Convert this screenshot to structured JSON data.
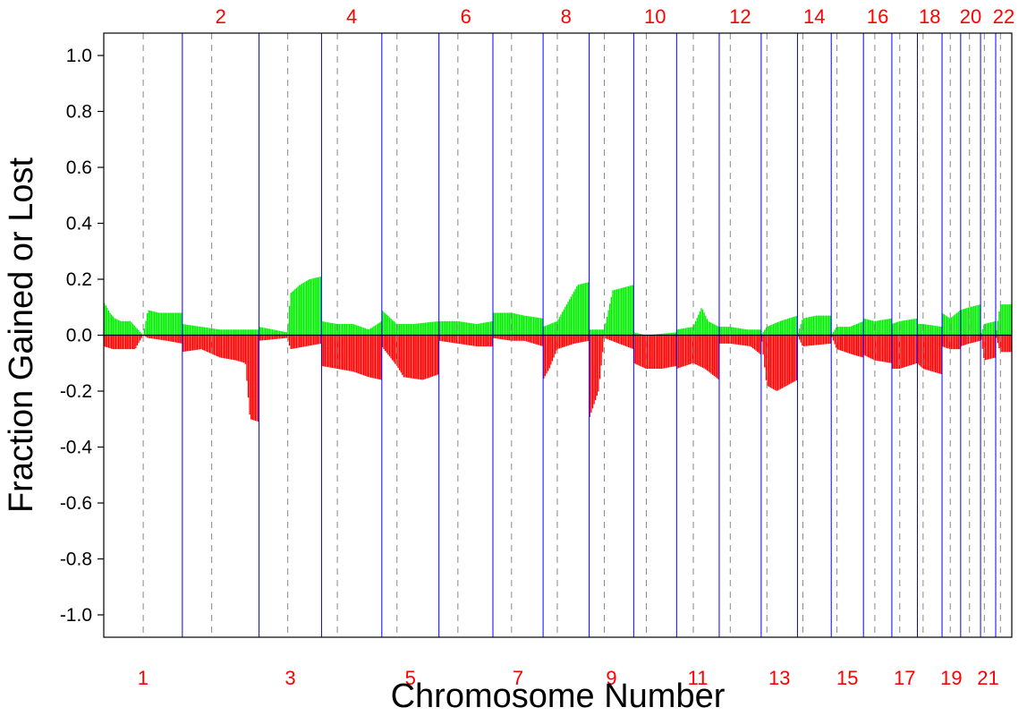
{
  "chart_data": {
    "type": "bar",
    "title": "",
    "xlabel": "Chromosome Number",
    "ylabel": "Fraction Gained or Lost",
    "ylim": [
      -1.08,
      1.08
    ],
    "yticks": [
      "1.0",
      "0.8",
      "0.6",
      "0.4",
      "0.2",
      "0.0",
      "-0.2",
      "-0.4",
      "-0.6",
      "-0.8",
      "-1.0"
    ],
    "ytick_values": [
      1.0,
      0.8,
      0.6,
      0.4,
      0.2,
      0.0,
      -0.2,
      -0.4,
      -0.6,
      -0.8,
      -1.0
    ],
    "grid": false,
    "colors": {
      "gain": "#00ee00",
      "loss": "#ff0000",
      "boundary": "#0000ff",
      "centromere": "#888888",
      "zero": "#000000",
      "chrom_label": "#ff0000"
    },
    "chromosomes": [
      {
        "label": "1",
        "size": 249,
        "cen": 125,
        "gain": [
          [
            0,
            0.12
          ],
          [
            20,
            0.08
          ],
          [
            35,
            0.06
          ],
          [
            55,
            0.05
          ],
          [
            85,
            0.05
          ],
          [
            125,
            0
          ],
          [
            140,
            0.09
          ],
          [
            175,
            0.08
          ],
          [
            249,
            0.08
          ]
        ],
        "loss": [
          [
            0,
            -0.04
          ],
          [
            30,
            -0.05
          ],
          [
            100,
            -0.05
          ],
          [
            125,
            0
          ],
          [
            140,
            -0.01
          ],
          [
            200,
            -0.02
          ],
          [
            249,
            -0.03
          ]
        ]
      },
      {
        "label": "2",
        "size": 243,
        "cen": 93,
        "gain": [
          [
            0,
            0.04
          ],
          [
            60,
            0.03
          ],
          [
            120,
            0.02
          ],
          [
            243,
            0.02
          ]
        ],
        "loss": [
          [
            0,
            -0.06
          ],
          [
            60,
            -0.05
          ],
          [
            120,
            -0.08
          ],
          [
            170,
            -0.09
          ],
          [
            200,
            -0.1
          ],
          [
            215,
            -0.3
          ],
          [
            243,
            -0.31
          ]
        ]
      },
      {
        "label": "3",
        "size": 198,
        "cen": 91,
        "gain": [
          [
            0,
            0.03
          ],
          [
            90,
            0.01
          ],
          [
            100,
            0.15
          ],
          [
            130,
            0.18
          ],
          [
            160,
            0.2
          ],
          [
            198,
            0.21
          ]
        ],
        "loss": [
          [
            0,
            -0.02
          ],
          [
            90,
            -0.01
          ],
          [
            100,
            -0.05
          ],
          [
            198,
            -0.03
          ]
        ]
      },
      {
        "label": "4",
        "size": 191,
        "cen": 50,
        "gain": [
          [
            0,
            0.05
          ],
          [
            50,
            0.04
          ],
          [
            100,
            0.04
          ],
          [
            150,
            0.02
          ],
          [
            191,
            0.05
          ]
        ],
        "loss": [
          [
            0,
            -0.11
          ],
          [
            50,
            -0.12
          ],
          [
            100,
            -0.13
          ],
          [
            150,
            -0.15
          ],
          [
            191,
            -0.16
          ]
        ]
      },
      {
        "label": "5",
        "size": 181,
        "cen": 48,
        "gain": [
          [
            0,
            0.09
          ],
          [
            48,
            0.04
          ],
          [
            100,
            0.04
          ],
          [
            181,
            0.05
          ]
        ],
        "loss": [
          [
            0,
            -0.04
          ],
          [
            48,
            -0.11
          ],
          [
            70,
            -0.15
          ],
          [
            130,
            -0.16
          ],
          [
            181,
            -0.14
          ]
        ]
      },
      {
        "label": "6",
        "size": 171,
        "cen": 60,
        "gain": [
          [
            0,
            0.05
          ],
          [
            60,
            0.05
          ],
          [
            120,
            0.04
          ],
          [
            171,
            0.05
          ]
        ],
        "loss": [
          [
            0,
            -0.02
          ],
          [
            60,
            -0.03
          ],
          [
            120,
            -0.04
          ],
          [
            171,
            -0.04
          ]
        ]
      },
      {
        "label": "7",
        "size": 159,
        "cen": 59,
        "gain": [
          [
            0,
            0.08
          ],
          [
            59,
            0.08
          ],
          [
            100,
            0.07
          ],
          [
            159,
            0.06
          ]
        ],
        "loss": [
          [
            0,
            -0.01
          ],
          [
            59,
            -0.02
          ],
          [
            100,
            -0.02
          ],
          [
            159,
            -0.04
          ]
        ]
      },
      {
        "label": "8",
        "size": 146,
        "cen": 45,
        "gain": [
          [
            0,
            0.03
          ],
          [
            45,
            0.05
          ],
          [
            80,
            0.12
          ],
          [
            110,
            0.18
          ],
          [
            146,
            0.19
          ]
        ],
        "loss": [
          [
            0,
            -0.16
          ],
          [
            20,
            -0.12
          ],
          [
            45,
            -0.05
          ],
          [
            100,
            -0.03
          ],
          [
            146,
            -0.02
          ]
        ]
      },
      {
        "label": "9",
        "size": 141,
        "cen": 48,
        "gain": [
          [
            0,
            0.02
          ],
          [
            48,
            0.02
          ],
          [
            75,
            0.16
          ],
          [
            141,
            0.18
          ]
        ],
        "loss": [
          [
            0,
            -0.3
          ],
          [
            30,
            -0.2
          ],
          [
            48,
            -0.01
          ],
          [
            141,
            -0.05
          ]
        ]
      },
      {
        "label": "10",
        "size": 136,
        "cen": 40,
        "gain": [
          [
            0,
            0.01
          ],
          [
            40,
            0.0
          ],
          [
            136,
            0.01
          ]
        ],
        "loss": [
          [
            0,
            -0.1
          ],
          [
            40,
            -0.12
          ],
          [
            90,
            -0.12
          ],
          [
            136,
            -0.11
          ]
        ]
      },
      {
        "label": "11",
        "size": 135,
        "cen": 53,
        "gain": [
          [
            0,
            0.02
          ],
          [
            53,
            0.03
          ],
          [
            80,
            0.1
          ],
          [
            100,
            0.05
          ],
          [
            135,
            0.03
          ]
        ],
        "loss": [
          [
            0,
            -0.12
          ],
          [
            53,
            -0.1
          ],
          [
            90,
            -0.12
          ],
          [
            135,
            -0.16
          ]
        ]
      },
      {
        "label": "12",
        "size": 133,
        "cen": 35,
        "gain": [
          [
            0,
            0.03
          ],
          [
            35,
            0.03
          ],
          [
            90,
            0.02
          ],
          [
            133,
            0.02
          ]
        ],
        "loss": [
          [
            0,
            -0.03
          ],
          [
            35,
            -0.03
          ],
          [
            100,
            -0.04
          ],
          [
            133,
            -0.07
          ]
        ]
      },
      {
        "label": "13",
        "size": 115,
        "cen": 18,
        "gain": [
          [
            0,
            0.0
          ],
          [
            18,
            0.03
          ],
          [
            60,
            0.05
          ],
          [
            115,
            0.07
          ]
        ],
        "loss": [
          [
            0,
            0.0
          ],
          [
            18,
            -0.18
          ],
          [
            50,
            -0.2
          ],
          [
            115,
            -0.16
          ]
        ]
      },
      {
        "label": "14",
        "size": 107,
        "cen": 17,
        "gain": [
          [
            0,
            0.0
          ],
          [
            17,
            0.06
          ],
          [
            60,
            0.07
          ],
          [
            107,
            0.07
          ]
        ],
        "loss": [
          [
            0,
            0.0
          ],
          [
            17,
            -0.04
          ],
          [
            107,
            -0.03
          ]
        ]
      },
      {
        "label": "15",
        "size": 102,
        "cen": 18,
        "gain": [
          [
            0,
            0.0
          ],
          [
            18,
            0.03
          ],
          [
            60,
            0.03
          ],
          [
            102,
            0.05
          ]
        ],
        "loss": [
          [
            0,
            0.0
          ],
          [
            18,
            -0.05
          ],
          [
            70,
            -0.07
          ],
          [
            102,
            -0.08
          ]
        ]
      },
      {
        "label": "16",
        "size": 90,
        "cen": 36,
        "gain": [
          [
            0,
            0.06
          ],
          [
            36,
            0.05
          ],
          [
            90,
            0.06
          ]
        ],
        "loss": [
          [
            0,
            -0.07
          ],
          [
            36,
            -0.09
          ],
          [
            90,
            -0.1
          ]
        ]
      },
      {
        "label": "17",
        "size": 81,
        "cen": 25,
        "gain": [
          [
            0,
            0.04
          ],
          [
            25,
            0.05
          ],
          [
            81,
            0.06
          ]
        ],
        "loss": [
          [
            0,
            -0.12
          ],
          [
            25,
            -0.12
          ],
          [
            81,
            -0.1
          ]
        ]
      },
      {
        "label": "18",
        "size": 78,
        "cen": 18,
        "gain": [
          [
            0,
            0.04
          ],
          [
            18,
            0.04
          ],
          [
            78,
            0.03
          ]
        ],
        "loss": [
          [
            0,
            -0.1
          ],
          [
            18,
            -0.12
          ],
          [
            78,
            -0.14
          ]
        ]
      },
      {
        "label": "19",
        "size": 59,
        "cen": 26,
        "gain": [
          [
            0,
            0.08
          ],
          [
            26,
            0.06
          ],
          [
            59,
            0.09
          ]
        ],
        "loss": [
          [
            0,
            -0.04
          ],
          [
            26,
            -0.05
          ],
          [
            59,
            -0.05
          ]
        ]
      },
      {
        "label": "20",
        "size": 63,
        "cen": 28,
        "gain": [
          [
            0,
            0.09
          ],
          [
            28,
            0.1
          ],
          [
            63,
            0.11
          ]
        ],
        "loss": [
          [
            0,
            -0.04
          ],
          [
            28,
            -0.03
          ],
          [
            63,
            -0.02
          ]
        ]
      },
      {
        "label": "21",
        "size": 48,
        "cen": 12,
        "gain": [
          [
            0,
            0.0
          ],
          [
            12,
            0.04
          ],
          [
            48,
            0.05
          ]
        ],
        "loss": [
          [
            0,
            0.0
          ],
          [
            12,
            -0.09
          ],
          [
            48,
            -0.08
          ]
        ]
      },
      {
        "label": "22",
        "size": 51,
        "cen": 15,
        "gain": [
          [
            0,
            0.0
          ],
          [
            15,
            0.11
          ],
          [
            51,
            0.11
          ]
        ],
        "loss": [
          [
            0,
            0.0
          ],
          [
            15,
            -0.06
          ],
          [
            51,
            -0.06
          ]
        ]
      }
    ]
  }
}
